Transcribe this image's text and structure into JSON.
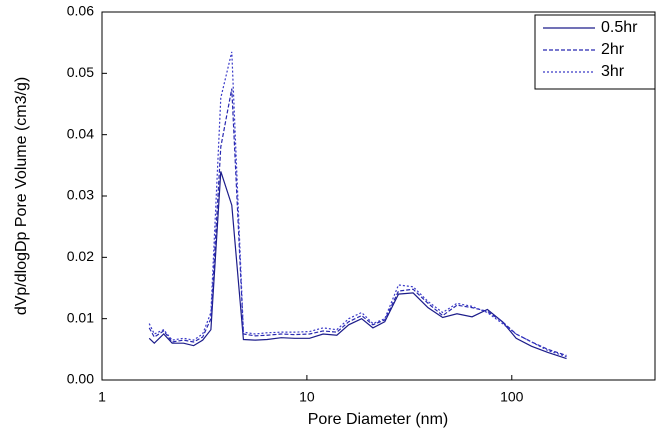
{
  "chart_data": {
    "type": "line",
    "x_label": "Pore Diameter (nm)",
    "y_label": "dVp/dlogDp Pore Volume (cm3/g)",
    "x": [
      1.7,
      1.8,
      2.0,
      2.2,
      2.5,
      2.8,
      3.1,
      3.4,
      3.8,
      4.3,
      4.9,
      5.6,
      6.4,
      7.5,
      8.7,
      10.3,
      12,
      14,
      16,
      18.5,
      21,
      24,
      28,
      33,
      39,
      46,
      54,
      64,
      76,
      90,
      105,
      125,
      150,
      185
    ],
    "series": [
      {
        "name": "0.5hr",
        "color": "#1c1c8a",
        "line_style": "solid",
        "values": [
          0.0068,
          0.006,
          0.0075,
          0.006,
          0.006,
          0.0056,
          0.0065,
          0.0082,
          0.034,
          0.0285,
          0.0066,
          0.0065,
          0.0066,
          0.0069,
          0.0068,
          0.0068,
          0.0075,
          0.0073,
          0.009,
          0.01,
          0.0085,
          0.0095,
          0.014,
          0.0142,
          0.0118,
          0.0102,
          0.0108,
          0.0103,
          0.0115,
          0.0095,
          0.0068,
          0.0055,
          0.0045,
          0.0035
        ]
      },
      {
        "name": "2hr",
        "color": "#2828b0",
        "line_style": "dash",
        "values": [
          0.0085,
          0.007,
          0.008,
          0.0062,
          0.0065,
          0.0062,
          0.007,
          0.01,
          0.038,
          0.0475,
          0.0075,
          0.0072,
          0.0073,
          0.0075,
          0.0074,
          0.0075,
          0.008,
          0.0078,
          0.0095,
          0.0105,
          0.009,
          0.0098,
          0.0145,
          0.0148,
          0.0125,
          0.0105,
          0.0122,
          0.0118,
          0.0112,
          0.0095,
          0.0075,
          0.0062,
          0.005,
          0.004
        ]
      },
      {
        "name": "3hr",
        "color": "#3a3ac8",
        "line_style": "dot",
        "values": [
          0.0092,
          0.0075,
          0.0082,
          0.0065,
          0.0068,
          0.0065,
          0.0075,
          0.011,
          0.046,
          0.0535,
          0.0078,
          0.0075,
          0.0077,
          0.0078,
          0.0078,
          0.0079,
          0.0085,
          0.0082,
          0.01,
          0.011,
          0.0092,
          0.01,
          0.0155,
          0.0152,
          0.0128,
          0.011,
          0.0125,
          0.012,
          0.011,
          0.0092,
          0.0075,
          0.0062,
          0.0048,
          0.0038
        ]
      }
    ],
    "xlim": [
      1,
      500
    ],
    "xticks": [
      1,
      10,
      100
    ],
    "x_log": true,
    "ylim": [
      0,
      0.06
    ],
    "yticks": [
      {
        "value": 0,
        "label": "0.00"
      },
      {
        "value": 0.01,
        "label": "0.01"
      },
      {
        "value": 0.02,
        "label": "0.02"
      },
      {
        "value": 0.03,
        "label": "0.03"
      },
      {
        "value": 0.04,
        "label": "0.04"
      },
      {
        "value": 0.05,
        "label": "0.05"
      },
      {
        "value": 0.06,
        "label": "0.06"
      }
    ],
    "legend": "upper-right"
  }
}
